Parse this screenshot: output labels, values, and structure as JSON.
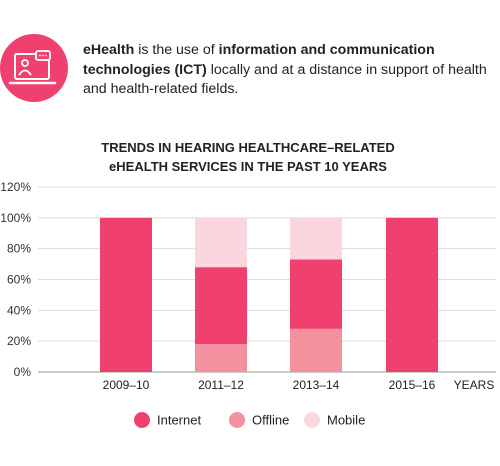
{
  "intro": {
    "part1": "eHealth",
    "part2": " is the use of ",
    "part3": "information and communication technologies (ICT)",
    "part4": " locally and at a distance in support of health and health-related fields."
  },
  "icon": "computer-health-icon",
  "colors": {
    "accent": "#f0416e",
    "internet": "#f0416e",
    "offline": "#f4919f",
    "mobile": "#fad7de"
  },
  "chart_data": {
    "type": "bar",
    "stacked": true,
    "title": [
      "TRENDS IN HEARING HEALTHCARE–RELATED",
      "eHEALTH SERVICES IN THE PAST 10 YEARS"
    ],
    "categories": [
      "2009–10",
      "2011–12",
      "2013–14",
      "2015–16"
    ],
    "xlabel": "YEARS",
    "ylabel": "",
    "ylim": [
      0,
      120
    ],
    "yticks": [
      0,
      20,
      40,
      60,
      80,
      100,
      120
    ],
    "ytick_labels": [
      "0%",
      "20%",
      "40%",
      "60%",
      "80%",
      "100%",
      "120%"
    ],
    "grid": true,
    "legend": "bottom",
    "series": [
      {
        "name": "Offline",
        "values": [
          0,
          18,
          28,
          0
        ]
      },
      {
        "name": "Internet",
        "values": [
          100,
          50,
          45,
          100
        ]
      },
      {
        "name": "Mobile",
        "values": [
          0,
          32,
          27,
          0
        ]
      }
    ],
    "legend_order": [
      "Internet",
      "Offline",
      "Mobile"
    ]
  }
}
